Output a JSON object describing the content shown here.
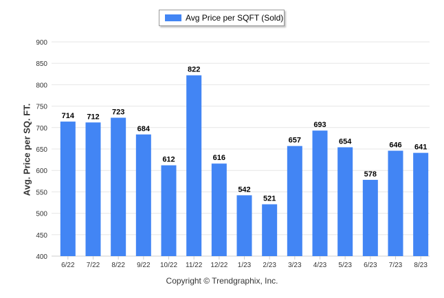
{
  "chart_data": {
    "type": "bar",
    "legend": {
      "label": "Avg Price per SQFT (Sold)",
      "placement": "top-center"
    },
    "ylabel": "Avg. Price per SQ. FT.",
    "xlabel": "",
    "ylim": [
      400,
      900
    ],
    "yticks": [
      400,
      450,
      500,
      550,
      600,
      650,
      700,
      750,
      800,
      850,
      900
    ],
    "grid": true,
    "categories": [
      "6/22",
      "7/22",
      "8/22",
      "9/22",
      "10/22",
      "11/22",
      "12/22",
      "1/23",
      "2/23",
      "3/23",
      "4/23",
      "5/23",
      "6/23",
      "7/23",
      "8/23"
    ],
    "series": [
      {
        "name": "Avg Price per SQFT (Sold)",
        "values": [
          714,
          712,
          723,
          684,
          612,
          822,
          616,
          542,
          521,
          657,
          693,
          654,
          578,
          646,
          641
        ]
      }
    ],
    "colors": {
      "bar": "#4285f4",
      "grid": "#e6e6e6",
      "axis": "#cccccc"
    }
  },
  "footer": {
    "copyright": "Copyright © Trendgraphix, Inc."
  }
}
